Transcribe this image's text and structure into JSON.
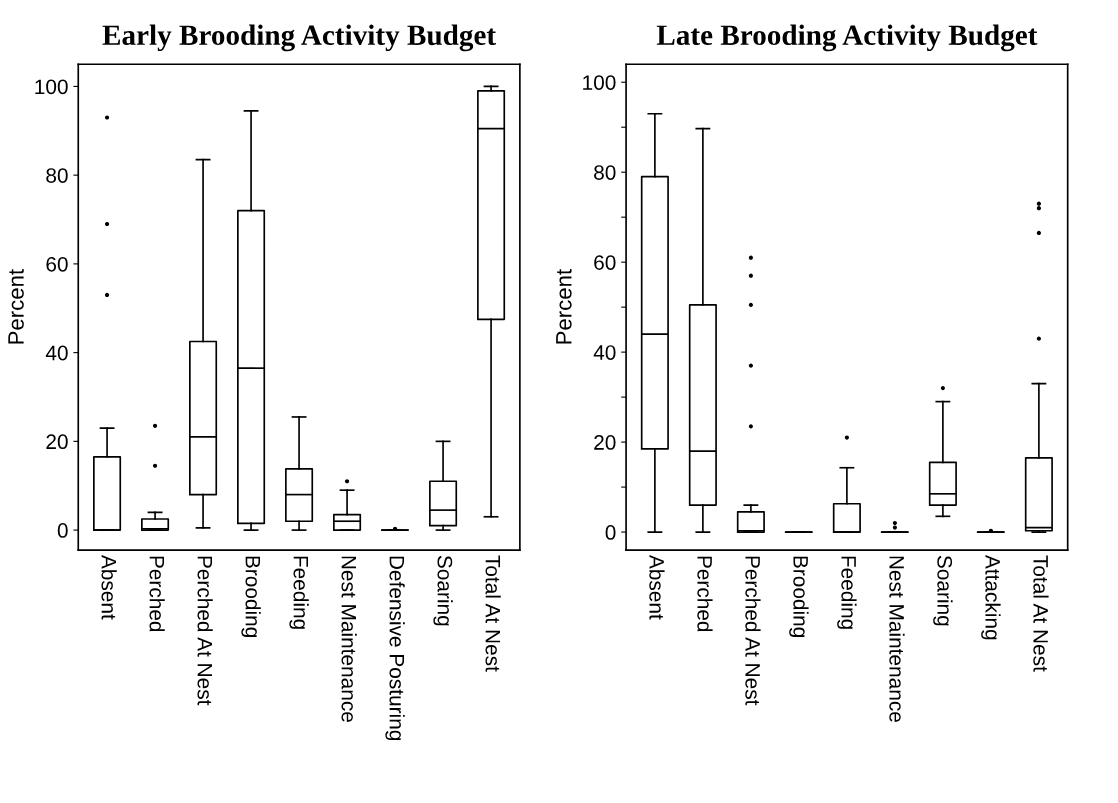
{
  "chart_data": [
    {
      "type": "box",
      "title": "Early Brooding Activity Budget",
      "ylabel": "Percent",
      "categories": [
        "Absent",
        "Perched",
        "Perched At Nest",
        "Brooding",
        "Feeding",
        "Nest Maintenance",
        "Defensive Posturing",
        "Soaring",
        "Total At Nest"
      ],
      "boxes": [
        {
          "low": 0,
          "q1": 0,
          "median": 0,
          "q3": 16.5,
          "high": 23,
          "outliers": [
            53,
            69,
            93
          ]
        },
        {
          "low": 0,
          "q1": 0,
          "median": 0.3,
          "q3": 2.5,
          "high": 4,
          "outliers": [
            14.5,
            23.5
          ]
        },
        {
          "low": 0.5,
          "q1": 8,
          "median": 21,
          "q3": 42.5,
          "high": 83.5
        },
        {
          "low": 0,
          "q1": 1.5,
          "median": 36.5,
          "q3": 72,
          "high": 94.5
        },
        {
          "low": 0,
          "q1": 2,
          "median": 8,
          "q3": 13.8,
          "high": 25.5
        },
        {
          "low": 0,
          "q1": 0,
          "median": 2,
          "q3": 3.5,
          "high": 9,
          "outliers": [
            11
          ]
        },
        {
          "low": 0,
          "q1": 0,
          "median": 0,
          "q3": 0,
          "high": 0,
          "outliers": [
            0.3
          ]
        },
        {
          "low": 0,
          "q1": 1,
          "median": 4.5,
          "q3": 11,
          "high": 20
        },
        {
          "low": 3,
          "q1": 47.5,
          "median": 90.5,
          "q3": 99,
          "high": 100
        }
      ],
      "ylim": [
        -4.5,
        105
      ],
      "yticks": [
        0,
        20,
        40,
        60,
        80,
        100
      ],
      "grid": false
    },
    {
      "type": "box",
      "title": "Late Brooding Activity Budget",
      "ylabel": "Percent",
      "categories": [
        "Absent",
        "Perched",
        "Perched At Nest",
        "Brooding",
        "Feeding",
        "Nest Maintenance",
        "Soaring",
        "Attacking",
        "Total At Nest"
      ],
      "boxes": [
        {
          "low": 0,
          "q1": 18.5,
          "median": 44,
          "q3": 79,
          "high": 93
        },
        {
          "low": 0,
          "q1": 6,
          "median": 18,
          "q3": 50.5,
          "high": 89.7
        },
        {
          "low": 0,
          "q1": 0,
          "median": 0.3,
          "q3": 4.5,
          "high": 6,
          "outliers": [
            23.5,
            37,
            50.5,
            57,
            61
          ]
        },
        {
          "low": 0,
          "q1": 0,
          "median": 0,
          "q3": 0,
          "high": 0
        },
        {
          "low": 0,
          "q1": 0,
          "median": 0,
          "q3": 6.3,
          "high": 14.3,
          "outliers": [
            21
          ]
        },
        {
          "low": 0,
          "q1": 0,
          "median": 0,
          "q3": 0,
          "high": 0,
          "outliers": [
            1,
            2
          ]
        },
        {
          "low": 3.5,
          "q1": 6,
          "median": 8.5,
          "q3": 15.5,
          "high": 29,
          "outliers": [
            32
          ]
        },
        {
          "low": 0,
          "q1": 0,
          "median": 0,
          "q3": 0,
          "high": 0,
          "outliers": [
            0.3
          ]
        },
        {
          "low": 0,
          "q1": 0.3,
          "median": 1,
          "q3": 16.5,
          "high": 33,
          "outliers": [
            43,
            66.5,
            72,
            73
          ]
        }
      ],
      "ylim": [
        -4,
        104
      ],
      "yticks": [
        0,
        {
          "value": 10,
          "label": null
        },
        20,
        {
          "value": 30,
          "label": null
        },
        40,
        {
          "value": 50,
          "label": null
        },
        60,
        {
          "value": 70,
          "label": null
        },
        80,
        {
          "value": 90,
          "label": null
        },
        100
      ],
      "grid": false
    }
  ]
}
